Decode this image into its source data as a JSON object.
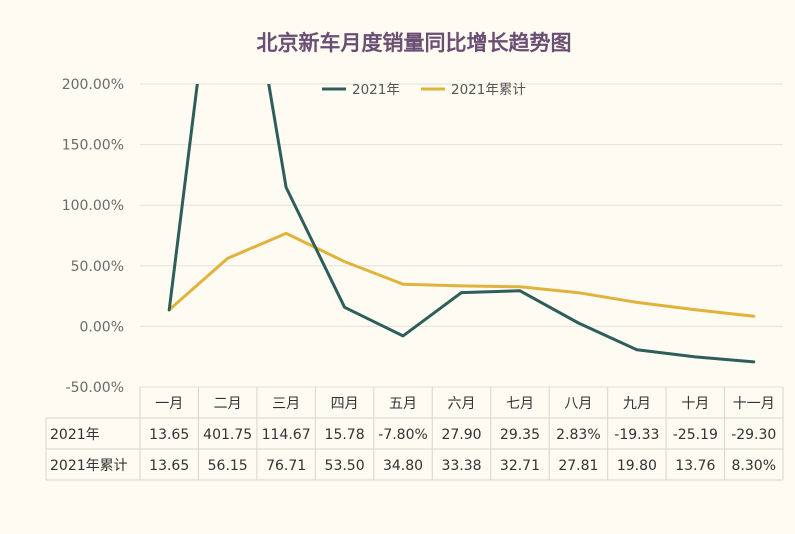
{
  "chart_data": {
    "type": "line",
    "title": "北京新车月度销量同比增长趋势图",
    "categories": [
      "一月",
      "二月",
      "三月",
      "四月",
      "五月",
      "六月",
      "七月",
      "八月",
      "九月",
      "十月",
      "十一月"
    ],
    "ylim": [
      -50,
      200
    ],
    "y_ticks": [
      "200.00%",
      "150.00%",
      "100.00%",
      "50.00%",
      "0.00%",
      "-50.00%"
    ],
    "legend_position": "top",
    "series": [
      {
        "name": "2021年",
        "color": "#2f5d5b",
        "values": [
          13.65,
          401.75,
          114.67,
          15.78,
          -7.8,
          27.9,
          29.35,
          2.83,
          -19.33,
          -25.19,
          -29.3
        ],
        "labels": [
          "13.65",
          "401.75",
          "114.67",
          "15.78",
          "-7.80%",
          "27.90",
          "29.35",
          "2.83%",
          "-19.33",
          "-25.19",
          "-29.30"
        ]
      },
      {
        "name": "2021年累计",
        "color": "#e2b33c",
        "values": [
          13.65,
          56.15,
          76.71,
          53.5,
          34.8,
          33.38,
          32.71,
          27.81,
          19.8,
          13.76,
          8.3
        ],
        "labels": [
          "13.65",
          "56.15",
          "76.71",
          "53.50",
          "34.80",
          "33.38",
          "32.71",
          "27.81",
          "19.80",
          "13.76",
          "8.30%"
        ]
      }
    ],
    "grid": true,
    "data_table": true
  }
}
